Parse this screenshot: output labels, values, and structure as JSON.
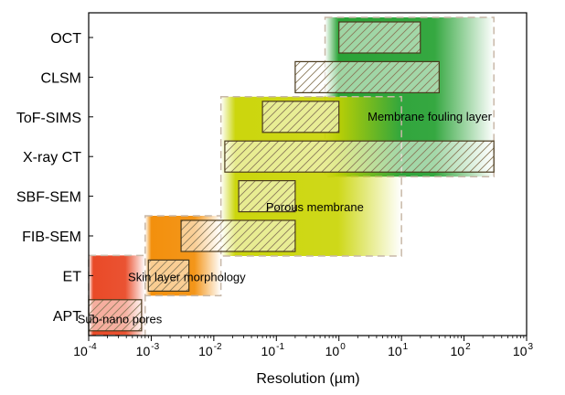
{
  "chart_data": {
    "type": "bar",
    "orientation": "horizontal-range",
    "x_scale": "log",
    "xlabel": "Resolution (µm)",
    "xlim": [
      0.0001,
      1000
    ],
    "x_ticks": [
      {
        "value": 0.0001,
        "base": "10",
        "exp": "-4"
      },
      {
        "value": 0.001,
        "base": "10",
        "exp": "-3"
      },
      {
        "value": 0.01,
        "base": "10",
        "exp": "-2"
      },
      {
        "value": 0.1,
        "base": "10",
        "exp": "-1"
      },
      {
        "value": 1,
        "base": "10",
        "exp": "0"
      },
      {
        "value": 10,
        "base": "10",
        "exp": "1"
      },
      {
        "value": 100,
        "base": "10",
        "exp": "2"
      },
      {
        "value": 1000,
        "base": "10",
        "exp": "3"
      }
    ],
    "categories": [
      "OCT",
      "CLSM",
      "ToF-SIMS",
      "X-ray CT",
      "SBF-SEM",
      "FIB-SEM",
      "ET",
      "APT"
    ],
    "ranges": [
      {
        "label": "OCT",
        "min": 1,
        "max": 20
      },
      {
        "label": "CLSM",
        "min": 0.2,
        "max": 40
      },
      {
        "label": "ToF-SIMS",
        "min": 0.06,
        "max": 1
      },
      {
        "label": "X-ray CT",
        "min": 0.015,
        "max": 300
      },
      {
        "label": "SBF-SEM",
        "min": 0.025,
        "max": 0.2
      },
      {
        "label": "FIB-SEM",
        "min": 0.003,
        "max": 0.2
      },
      {
        "label": "ET",
        "min": 0.0009,
        "max": 0.004
      },
      {
        "label": "APT",
        "min": 0.0001,
        "max": 0.0007
      }
    ],
    "regions": [
      {
        "label": "Membrane fouling layer",
        "min": 0.6,
        "max": 300,
        "cat_from": "OCT",
        "cat_to": "X-ray CT",
        "color": "#1f9e2c"
      },
      {
        "label": "Porous membrane",
        "min": 0.013,
        "max": 10,
        "cat_from": "ToF-SIMS",
        "cat_to": "FIB-SEM",
        "color": "#c9d400"
      },
      {
        "label": "Skin layer morphology",
        "min": 0.0008,
        "max": 0.013,
        "cat_from": "FIB-SEM",
        "cat_to": "ET",
        "color": "#f28a00"
      },
      {
        "label": "Sub-nano pores",
        "min": 0.0001,
        "max": 0.0008,
        "cat_from": "ET",
        "cat_to": "APT",
        "color": "#e8401c"
      }
    ],
    "bar_edge_color": "#4a3a1e",
    "hatch_color": "#8a7a5a"
  }
}
